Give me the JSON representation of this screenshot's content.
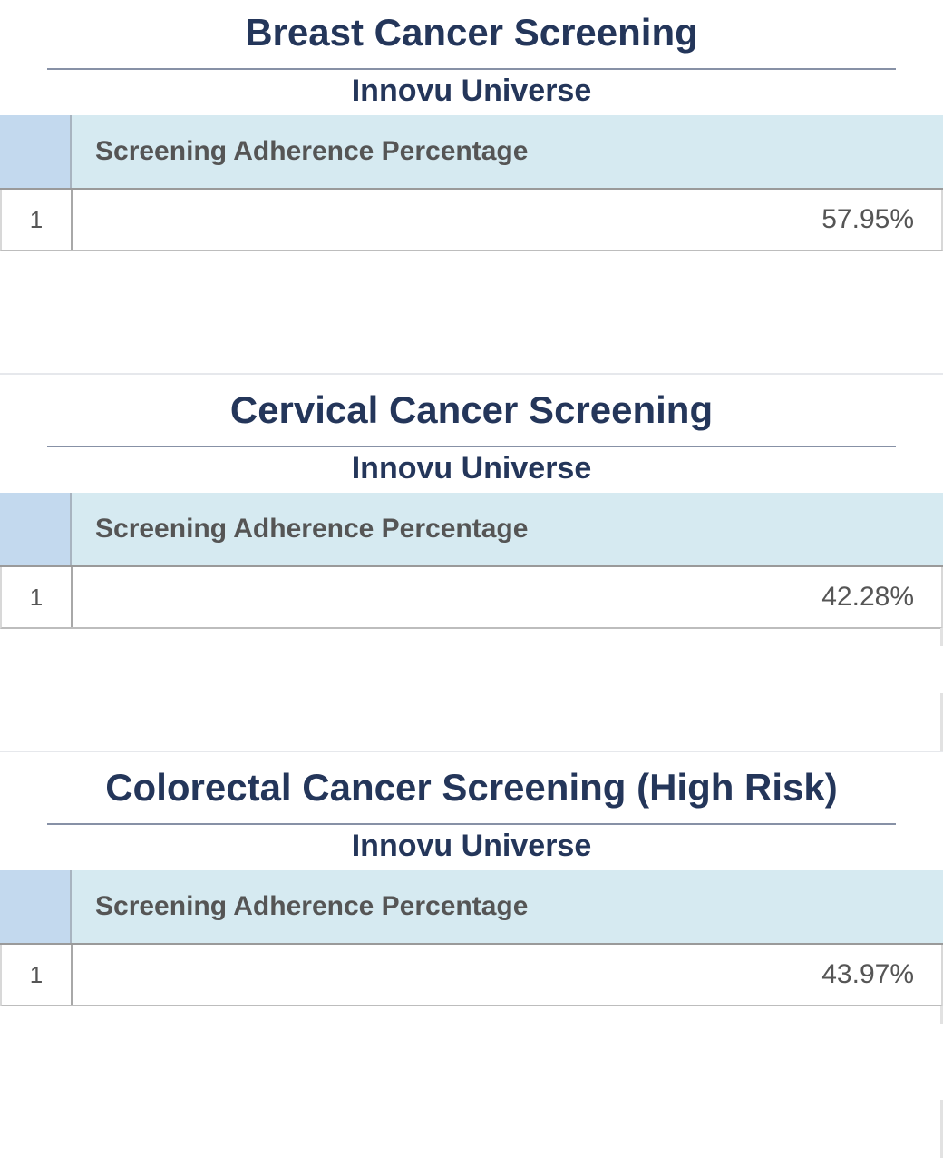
{
  "panels": [
    {
      "title": "Breast Cancer Screening",
      "subtitle": "Innovu Universe",
      "column_header": "Screening Adherence Percentage",
      "rows": [
        {
          "row_number": "1",
          "value": "57.95%"
        }
      ]
    },
    {
      "title": "Cervical Cancer Screening",
      "subtitle": "Innovu Universe",
      "column_header": "Screening Adherence Percentage",
      "rows": [
        {
          "row_number": "1",
          "value": "42.28%"
        }
      ]
    },
    {
      "title": "Colorectal Cancer Screening (High Risk)",
      "subtitle": "Innovu Universe",
      "column_header": "Screening Adherence Percentage",
      "rows": [
        {
          "row_number": "1",
          "value": "43.97%"
        }
      ]
    }
  ],
  "colors": {
    "title_text": "#24365a",
    "header_bg": "#d6eaf1",
    "rownum_header_bg": "#c3d9ee",
    "cell_text": "#555555"
  }
}
